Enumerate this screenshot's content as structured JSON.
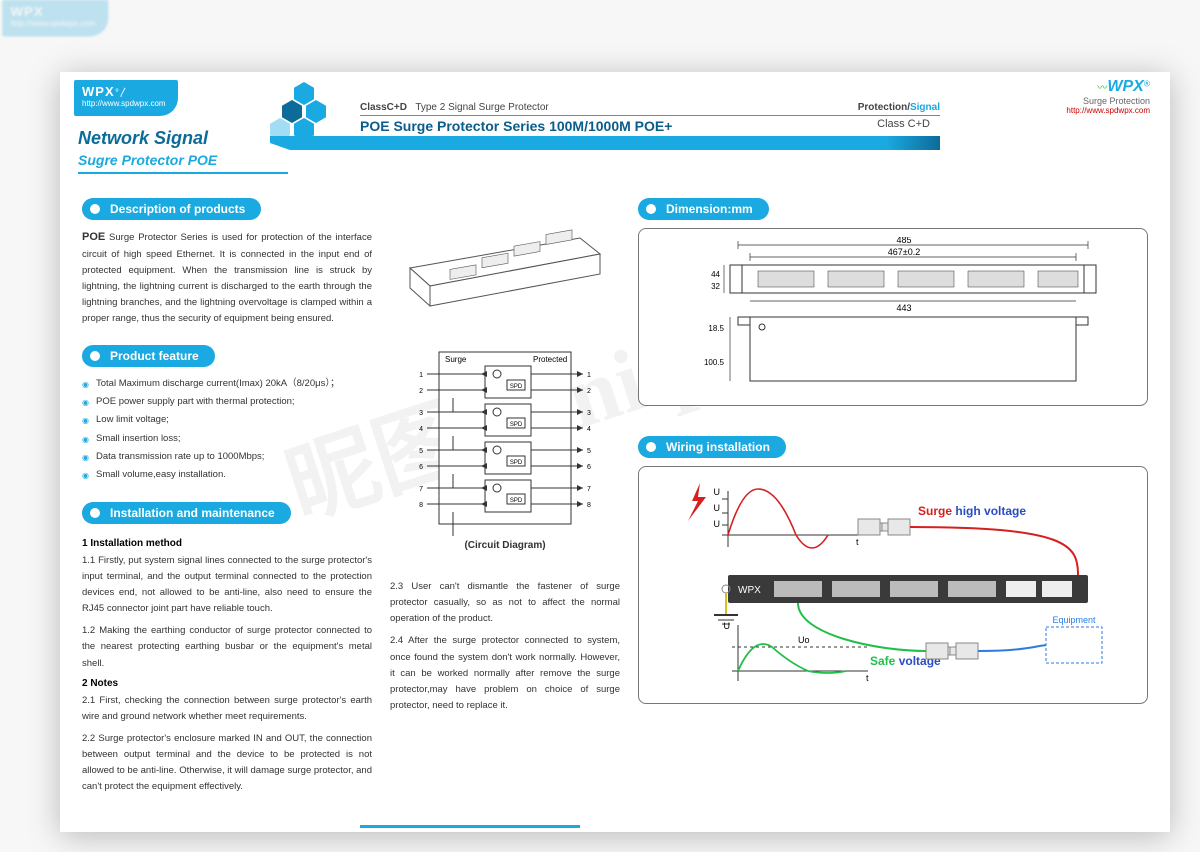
{
  "brand": {
    "name": "WPX",
    "url": "http://www.spdwpx.com",
    "tag": "Surge Protection"
  },
  "header": {
    "classLabel": "ClassC+D",
    "typeLabel": "Type 2 Signal Surge Protector",
    "protectionLabel": "Protection/",
    "protectionSignal": "Signal",
    "classRight": "Class C+D",
    "seriesTitle": "POE Surge Protector Series 100M/1000M  POE+",
    "netTitle": "Network Signal",
    "netSub": "Sugre Protector  POE"
  },
  "pills": {
    "desc": "Description of products",
    "feat": "Product feature",
    "inst": "Installation and maintenance",
    "dim": "Dimension:mm",
    "wiring": "Wiring installation"
  },
  "desc": {
    "lead": "POE",
    "body": " Surge Protector Series is used for protection of the interface circuit of high speed Ethernet. It is connected in the input end of protected equipment. When the transmission line is struck by lightning, the lightning current is discharged to the earth through the lightning branches, and the lightning overvoltage is clamped within a proper range, thus the security of equipment being ensured."
  },
  "features": [
    "Total Maximum discharge current(Imax) 20kA（8/20μs）；",
    "POE power supply part with thermal protection;",
    "Low limit voltage;",
    "Small insertion loss;",
    "Data transmission rate up to 1000Mbps;",
    "Small volume,easy installation."
  ],
  "install": {
    "h1": "1 Installation method",
    "p11": "1.1 Firstly, put system signal lines connected to the surge protector's input terminal, and the output terminal connected to the protection devices end, not allowed to be anti-line, also need to ensure the RJ45 connector joint part have reliable touch.",
    "p12": "1.2 Making the earthing conductor of surge protector connected to the nearest protecting earthing busbar or the equipment's metal shell.",
    "h2": "2 Notes",
    "p21": "2.1 First, checking the connection between surge protector's earth wire and ground network whether meet requirements.",
    "p22": "2.2 Surge protector's enclosure marked IN and OUT, the connection between output terminal and the device to be protected is not allowed to be anti-line. Otherwise, it will damage surge protector, and can't protect the equipment effectively.",
    "p23": "2.3 User can't dismantle the fastener of surge protector casually, so as not to affect the normal operation of the product.",
    "p24": "2.4 After the surge protector connected to system, once found the system don't work normally. However, it can be worked normally after remove the surge protector,may have problem on choice of surge protector, need to replace it."
  },
  "circuit": {
    "label": "(Circuit Diagram)",
    "left": "Surge",
    "right": "Protected",
    "rows": [
      "1",
      "2",
      "3",
      "4",
      "5",
      "6",
      "7",
      "8"
    ]
  },
  "dimension": {
    "w_outer": "485",
    "w_inner": "467±0.2",
    "w_body": "443",
    "h1": "44",
    "h2": "32",
    "d1": "18.5",
    "d2": "100.5"
  },
  "wiring": {
    "surgeLabel": "Surge high voltage",
    "safeLabel": "Safe voltage",
    "equipLabel": "Equipment",
    "u": "U",
    "uo": "Uo",
    "t": "t",
    "deviceBrand": "WPX",
    "colors": {
      "surgeLine": "#d61f1f",
      "safeLine": "#1fbf4a",
      "equipLine": "#2a7de0",
      "ground": "#d6c21f"
    }
  },
  "style": {
    "accent": "#1aa9e0",
    "darkAccent": "#0c6b99",
    "textColor": "#333333",
    "bg": "#ffffff"
  }
}
